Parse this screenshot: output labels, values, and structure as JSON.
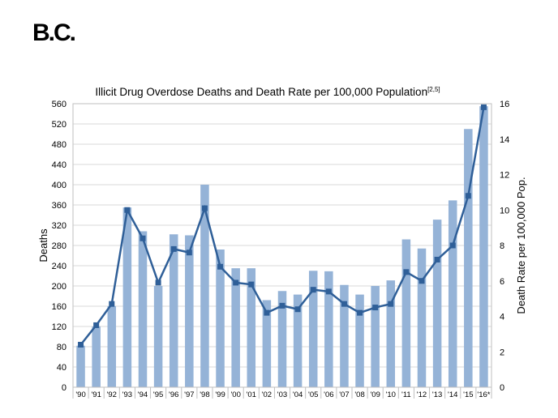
{
  "slide": {
    "title": "B.C."
  },
  "chart_data": {
    "type": "bar",
    "title": "Illicit Drug Overdose Deaths and Death Rate per 100,000 Population",
    "title_superscript": "[2,5]",
    "categories": [
      "'90",
      "'91",
      "'92",
      "'93",
      "'94",
      "'95",
      "'96",
      "'97",
      "'98",
      "'99",
      "'00",
      "'01",
      "'02",
      "'03",
      "'04",
      "'05",
      "'06",
      "'07",
      "'08",
      "'09",
      "'10",
      "'11",
      "'12",
      "'13",
      "'14",
      "'15",
      "'16*"
    ],
    "series": [
      {
        "name": "Deaths",
        "type": "bar",
        "axis": "left",
        "color": "#95b3d7",
        "values": [
          82,
          120,
          160,
          355,
          308,
          200,
          302,
          300,
          400,
          272,
          235,
          235,
          172,
          190,
          183,
          230,
          229,
          202,
          183,
          200,
          211,
          292,
          274,
          331,
          369,
          510,
          555
        ]
      },
      {
        "name": "Death Rate per 100,000 Pop.",
        "type": "line",
        "axis": "right",
        "color": "#2f5f98",
        "values": [
          2.4,
          3.5,
          4.7,
          10.0,
          8.4,
          5.9,
          7.8,
          7.6,
          10.1,
          6.8,
          5.9,
          5.8,
          4.2,
          4.6,
          4.4,
          5.5,
          5.4,
          4.7,
          4.2,
          4.5,
          4.7,
          6.5,
          6.0,
          7.2,
          8.0,
          10.8,
          15.8
        ]
      }
    ],
    "ylabel": "Deaths",
    "y2label": "Death Rate per 100,000 Pop.",
    "ylim": [
      0,
      560
    ],
    "yticks": [
      0,
      40,
      80,
      120,
      160,
      200,
      240,
      280,
      320,
      360,
      400,
      440,
      480,
      520,
      560
    ],
    "y2lim": [
      0,
      16
    ],
    "y2ticks": [
      0,
      2,
      4,
      6,
      8,
      10,
      12,
      14,
      16
    ],
    "grid": true,
    "legend": "none"
  }
}
